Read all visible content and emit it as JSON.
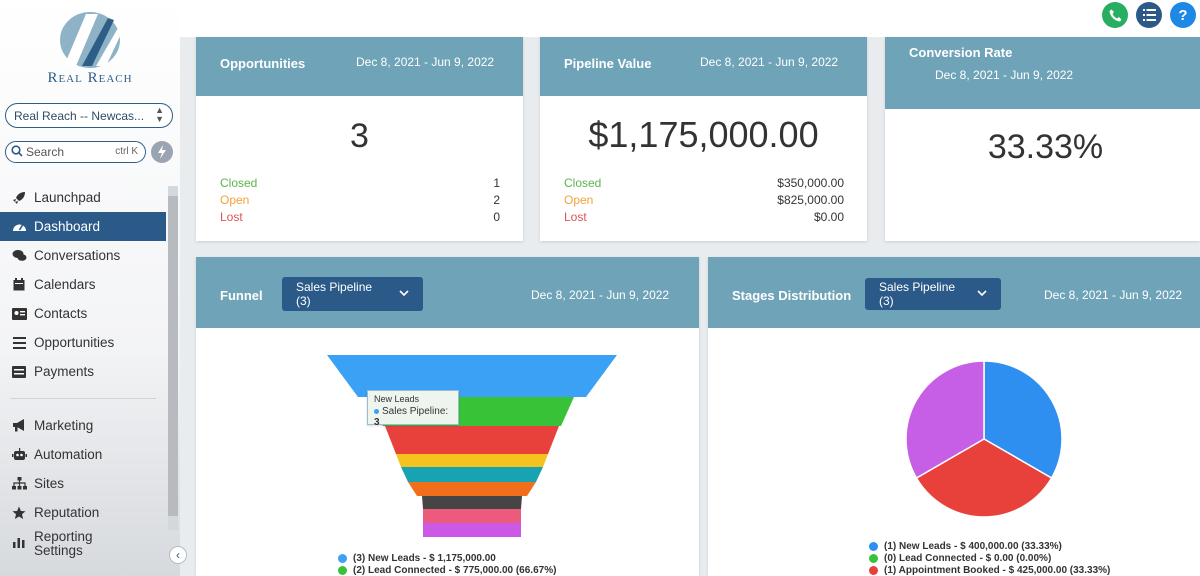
{
  "brand": {
    "logo_text": "Real Reach"
  },
  "sidebar": {
    "location": "Real Reach -- Newcas...",
    "search": {
      "placeholder": "Search",
      "shortcut": "ctrl K"
    },
    "items": [
      {
        "label": "Launchpad",
        "icon": "rocket-icon"
      },
      {
        "label": "Dashboard",
        "icon": "dashboard-icon",
        "active": true
      },
      {
        "label": "Conversations",
        "icon": "chat-icon"
      },
      {
        "label": "Calendars",
        "icon": "calendar-icon"
      },
      {
        "label": "Contacts",
        "icon": "contact-card-icon"
      },
      {
        "label": "Opportunities",
        "icon": "list-icon"
      },
      {
        "label": "Payments",
        "icon": "payments-icon"
      }
    ],
    "items2": [
      {
        "label": "Marketing",
        "icon": "megaphone-icon"
      },
      {
        "label": "Automation",
        "icon": "robot-icon"
      },
      {
        "label": "Sites",
        "icon": "sitemap-icon"
      },
      {
        "label": "Reputation",
        "icon": "star-icon"
      },
      {
        "label": "Reporting",
        "icon": "chart-icon"
      }
    ],
    "settings_label": "Settings"
  },
  "topbar": {
    "buttons": [
      {
        "name": "phone-button",
        "icon": "phone-icon",
        "color": "#27ae60"
      },
      {
        "name": "task-list-button",
        "icon": "list-icon",
        "color": "#2b5a89"
      },
      {
        "name": "help-button",
        "icon": "question-icon",
        "color": "#1e88e5",
        "glyph": "?"
      }
    ]
  },
  "cards": {
    "opportunities": {
      "title": "Opportunities",
      "date": "Dec 8, 2021 - Jun 9, 2022",
      "total": "3",
      "rows": [
        {
          "label": "Closed",
          "value": "1"
        },
        {
          "label": "Open",
          "value": "2"
        },
        {
          "label": "Lost",
          "value": "0"
        }
      ]
    },
    "pipeline": {
      "title": "Pipeline Value",
      "date": "Dec 8, 2021 - Jun 9, 2022",
      "total": "$1,175,000.00",
      "rows": [
        {
          "label": "Closed",
          "value": "$350,000.00"
        },
        {
          "label": "Open",
          "value": "$825,000.00"
        },
        {
          "label": "Lost",
          "value": "$0.00"
        }
      ]
    },
    "conversion": {
      "title": "Conversion Rate",
      "date": "Dec 8, 2021 - Jun 9, 2022",
      "total": "33.33%"
    },
    "funnel": {
      "title": "Funnel",
      "dropdown": "Sales Pipeline (3)",
      "date": "Dec 8, 2021 - Jun 9, 2022",
      "tooltip": {
        "stage": "New Leads",
        "series": "Sales Pipeline:",
        "value": "3"
      }
    },
    "stages": {
      "title": "Stages Distribution",
      "dropdown": "Sales Pipeline (3)",
      "date": "Dec 8, 2021 - Jun 9, 2022"
    }
  },
  "chart_data": [
    {
      "type": "funnel",
      "stages": [
        {
          "name": "New Leads",
          "count": 3,
          "color": "#3ba1f5"
        },
        {
          "name": "Lead Connected",
          "count": 2,
          "color": "#38c238"
        },
        {
          "name": "",
          "count": null,
          "color": "#e8413c"
        },
        {
          "name": "",
          "count": null,
          "color": "#f6c21d"
        },
        {
          "name": "",
          "count": null,
          "color": "#18a3b3"
        },
        {
          "name": "",
          "count": null,
          "color": "#f16f1a"
        },
        {
          "name": "",
          "count": null,
          "color": "#454545"
        },
        {
          "name": "",
          "count": null,
          "color": "#ec5a7e"
        },
        {
          "name": "",
          "count": null,
          "color": "#cb59e6"
        }
      ],
      "legend": [
        {
          "text": "(3) New Leads - $ 1,175,000.00",
          "color": "#3ba1f5"
        },
        {
          "text": "(2) Lead Connected - $ 775,000.00 (66.67%)",
          "color": "#38c238"
        }
      ]
    },
    {
      "type": "pie",
      "slices": [
        {
          "label": "New Leads",
          "value": 33.33,
          "color": "#2e8ff0"
        },
        {
          "label": "Appointment Booked",
          "value": 33.33,
          "color": "#e8413c"
        },
        {
          "label": "",
          "value": 33.34,
          "color": "#c65ee6"
        }
      ],
      "legend": [
        {
          "text": "(1) New Leads - $ 400,000.00 (33.33%)",
          "color": "#2e8ff0"
        },
        {
          "text": "(0) Lead Connected - $ 0.00 (0.00%)",
          "color": "#38c238"
        },
        {
          "text": "(1) Appointment Booked - $ 425,000.00 (33.33%)",
          "color": "#e8413c"
        }
      ]
    }
  ]
}
